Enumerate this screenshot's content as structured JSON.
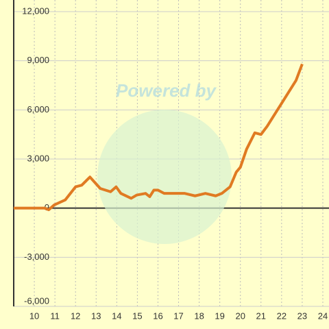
{
  "chart_data": {
    "type": "line",
    "watermark": "Powered by",
    "x": [
      9.0,
      10.5,
      10.7,
      10.97,
      11.5,
      12.0,
      12.3,
      12.7,
      13.2,
      13.7,
      13.97,
      14.2,
      14.7,
      14.97,
      15.4,
      15.6,
      15.8,
      16.0,
      16.3,
      17.3,
      17.8,
      18.3,
      18.8,
      19.1,
      19.5,
      19.8,
      20.0,
      20.3,
      20.7,
      21.0,
      21.3,
      21.7,
      22.0,
      22.3,
      22.7,
      23.0
    ],
    "series": [
      {
        "color": "#e07a22",
        "values": [
          0,
          0,
          -100,
          200,
          500,
          1300,
          1400,
          1900,
          1200,
          1000,
          1300,
          900,
          600,
          800,
          900,
          700,
          1100,
          1100,
          900,
          900,
          750,
          900,
          750,
          900,
          1300,
          2200,
          2500,
          3600,
          4600,
          4500,
          5000,
          5800,
          6400,
          7000,
          7800,
          8800
        ]
      }
    ],
    "xlim": [
      9,
      24.3
    ],
    "xticks": [
      10,
      11,
      12,
      13,
      14,
      15,
      16,
      17,
      18,
      19,
      20,
      21,
      22,
      23,
      24
    ],
    "ylim": [
      -6000,
      12000
    ],
    "yticks": [
      {
        "value": -6000,
        "label": "-6,000"
      },
      {
        "value": -3000,
        "label": "-3,000"
      },
      0,
      {
        "value": 3000,
        "label": "3,000"
      },
      {
        "value": 6000,
        "label": "6,000"
      },
      {
        "value": 9000,
        "label": "9,000"
      },
      {
        "value": 12000,
        "label": "12,000"
      }
    ],
    "grid": true
  }
}
